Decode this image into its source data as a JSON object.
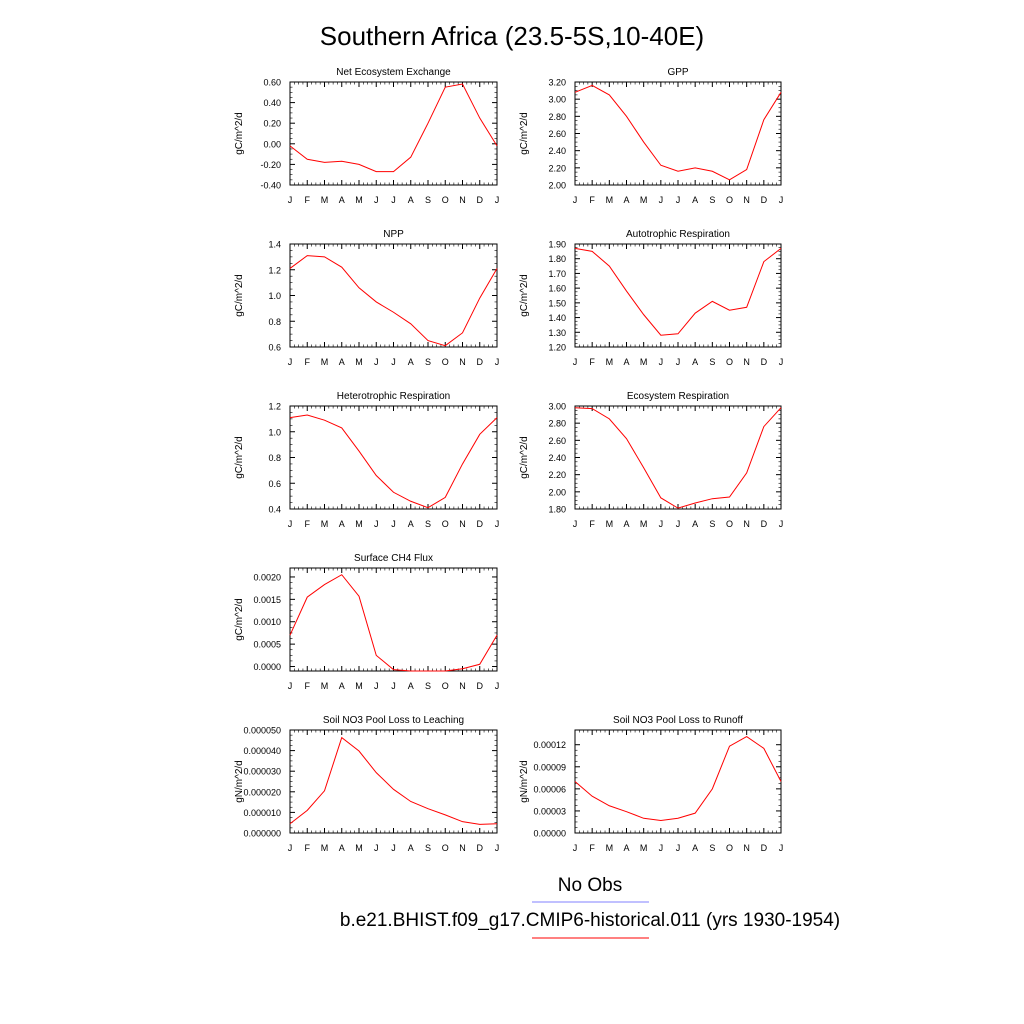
{
  "figure": {
    "title": "Southern Africa (23.5-5S,10-40E)",
    "legend": [
      {
        "label": "No Obs",
        "color": "#8080ff"
      },
      {
        "label": "b.e21.BHIST.f09_g17.CMIP6-historical.011 (yrs 1930-1954)",
        "color": "#ff0000"
      }
    ],
    "line_color": "#ff0000"
  },
  "chart_data": [
    {
      "type": "line",
      "title": "Net Ecosystem Exchange",
      "ylabel": "gC/m^2/d",
      "xlabel": "",
      "x": [
        "J",
        "F",
        "M",
        "A",
        "M",
        "J",
        "J",
        "A",
        "S",
        "O",
        "N",
        "D",
        "J"
      ],
      "ylim": [
        -0.4,
        0.6
      ],
      "yticks": [
        -0.4,
        -0.2,
        0.0,
        0.2,
        0.4,
        0.6
      ],
      "ytick_labels": [
        "-0.40",
        "-0.20",
        "0.00",
        "0.20",
        "0.40",
        "0.60"
      ],
      "series": [
        {
          "values": [
            -0.02,
            -0.15,
            -0.18,
            -0.17,
            -0.2,
            -0.27,
            -0.27,
            -0.13,
            0.2,
            0.55,
            0.58,
            0.25,
            -0.02
          ]
        }
      ]
    },
    {
      "type": "line",
      "title": "GPP",
      "ylabel": "gC/m^2/d",
      "xlabel": "",
      "x": [
        "J",
        "F",
        "M",
        "A",
        "M",
        "J",
        "J",
        "A",
        "S",
        "O",
        "N",
        "D",
        "J"
      ],
      "ylim": [
        2.0,
        3.2
      ],
      "yticks": [
        2.0,
        2.2,
        2.4,
        2.6,
        2.8,
        3.0,
        3.2
      ],
      "ytick_labels": [
        "2.00",
        "2.20",
        "2.40",
        "2.60",
        "2.80",
        "3.00",
        "3.20"
      ],
      "series": [
        {
          "values": [
            3.08,
            3.16,
            3.05,
            2.8,
            2.5,
            2.23,
            2.16,
            2.2,
            2.16,
            2.06,
            2.18,
            2.76,
            3.08
          ]
        }
      ]
    },
    {
      "type": "line",
      "title": "NPP",
      "ylabel": "gC/m^2/d",
      "xlabel": "",
      "x": [
        "J",
        "F",
        "M",
        "A",
        "M",
        "J",
        "J",
        "A",
        "S",
        "O",
        "N",
        "D",
        "J"
      ],
      "ylim": [
        0.6,
        1.4
      ],
      "yticks": [
        0.6,
        0.8,
        1.0,
        1.2,
        1.4
      ],
      "ytick_labels": [
        "0.6",
        "0.8",
        "1.0",
        "1.2",
        "1.4"
      ],
      "series": [
        {
          "values": [
            1.21,
            1.31,
            1.3,
            1.22,
            1.06,
            0.95,
            0.87,
            0.78,
            0.65,
            0.61,
            0.71,
            0.98,
            1.21
          ]
        }
      ]
    },
    {
      "type": "line",
      "title": "Autotrophic Respiration",
      "ylabel": "gC/m^2/d",
      "xlabel": "",
      "x": [
        "J",
        "F",
        "M",
        "A",
        "M",
        "J",
        "J",
        "A",
        "S",
        "O",
        "N",
        "D",
        "J"
      ],
      "ylim": [
        1.2,
        1.9
      ],
      "yticks": [
        1.2,
        1.3,
        1.4,
        1.5,
        1.6,
        1.7,
        1.8,
        1.9
      ],
      "ytick_labels": [
        "1.20",
        "1.30",
        "1.40",
        "1.50",
        "1.60",
        "1.70",
        "1.80",
        "1.90"
      ],
      "series": [
        {
          "values": [
            1.87,
            1.85,
            1.75,
            1.58,
            1.42,
            1.28,
            1.29,
            1.43,
            1.51,
            1.45,
            1.47,
            1.78,
            1.87
          ]
        }
      ]
    },
    {
      "type": "line",
      "title": "Heterotrophic Respiration",
      "ylabel": "gC/m^2/d",
      "xlabel": "",
      "x": [
        "J",
        "F",
        "M",
        "A",
        "M",
        "J",
        "J",
        "A",
        "S",
        "O",
        "N",
        "D",
        "J"
      ],
      "ylim": [
        0.4,
        1.2
      ],
      "yticks": [
        0.4,
        0.6,
        0.8,
        1.0,
        1.2
      ],
      "ytick_labels": [
        "0.4",
        "0.6",
        "0.8",
        "1.0",
        "1.2"
      ],
      "series": [
        {
          "values": [
            1.11,
            1.13,
            1.09,
            1.03,
            0.85,
            0.66,
            0.53,
            0.46,
            0.41,
            0.49,
            0.75,
            0.98,
            1.11
          ]
        }
      ]
    },
    {
      "type": "line",
      "title": "Ecosystem Respiration",
      "ylabel": "gC/m^2/d",
      "xlabel": "",
      "x": [
        "J",
        "F",
        "M",
        "A",
        "M",
        "J",
        "J",
        "A",
        "S",
        "O",
        "N",
        "D",
        "J"
      ],
      "ylim": [
        1.8,
        3.0
      ],
      "yticks": [
        1.8,
        2.0,
        2.2,
        2.4,
        2.6,
        2.8,
        3.0
      ],
      "ytick_labels": [
        "1.80",
        "2.00",
        "2.20",
        "2.40",
        "2.60",
        "2.80",
        "3.00"
      ],
      "series": [
        {
          "values": [
            2.98,
            2.97,
            2.85,
            2.62,
            2.28,
            1.93,
            1.81,
            1.87,
            1.92,
            1.94,
            2.22,
            2.76,
            2.98
          ]
        }
      ]
    },
    {
      "type": "line",
      "title": "Surface CH4 Flux",
      "ylabel": "gC/m^2/d",
      "xlabel": "",
      "x": [
        "J",
        "F",
        "M",
        "A",
        "M",
        "J",
        "J",
        "A",
        "S",
        "O",
        "N",
        "D",
        "J"
      ],
      "ylim": [
        -0.0001,
        0.0022
      ],
      "yticks": [
        0.0,
        0.0005,
        0.001,
        0.0015,
        0.002
      ],
      "ytick_labels": [
        "0.0000",
        "0.0005",
        "0.0010",
        "0.0015",
        "0.0020"
      ],
      "series": [
        {
          "values": [
            0.0007,
            0.00155,
            0.00183,
            0.00205,
            0.00157,
            0.00025,
            -7e-05,
            -0.0001,
            -0.0001,
            -0.0001,
            -5e-05,
            5e-05,
            0.0007
          ]
        }
      ]
    },
    {
      "type": "line",
      "title": "Soil NO3 Pool Loss to Leaching",
      "ylabel": "gN/m^2/d",
      "xlabel": "",
      "x": [
        "J",
        "F",
        "M",
        "A",
        "M",
        "J",
        "J",
        "A",
        "S",
        "O",
        "N",
        "D",
        "J"
      ],
      "ylim": [
        0.0,
        5e-05
      ],
      "yticks": [
        0.0,
        1e-05,
        2e-05,
        3e-05,
        4e-05,
        5e-05
      ],
      "ytick_labels": [
        "0.000000",
        "0.000010",
        "0.000020",
        "0.000030",
        "0.000040",
        "0.000050"
      ],
      "series": [
        {
          "values": [
            4.5e-06,
            1.1e-05,
            2.05e-05,
            4.63e-05,
            3.98e-05,
            2.93e-05,
            2.12e-05,
            1.53e-05,
            1.18e-05,
            8.8e-06,
            5.5e-06,
            4.2e-06,
            4.5e-06
          ]
        }
      ]
    },
    {
      "type": "line",
      "title": "Soil NO3 Pool Loss to Runoff",
      "ylabel": "gN/m^2/d",
      "xlabel": "",
      "x": [
        "J",
        "F",
        "M",
        "A",
        "M",
        "J",
        "J",
        "A",
        "S",
        "O",
        "N",
        "D",
        "J"
      ],
      "ylim": [
        0.0,
        0.00014
      ],
      "yticks": [
        0.0,
        3e-05,
        6e-05,
        9e-05,
        0.00012
      ],
      "ytick_labels": [
        "0.00000",
        "0.00003",
        "0.00006",
        "0.00009",
        "0.00012"
      ],
      "series": [
        {
          "values": [
            7e-05,
            5e-05,
            3.7e-05,
            2.9e-05,
            2e-05,
            1.7e-05,
            2e-05,
            2.7e-05,
            6e-05,
            0.000118,
            0.000131,
            0.000115,
            7e-05
          ]
        }
      ]
    }
  ]
}
